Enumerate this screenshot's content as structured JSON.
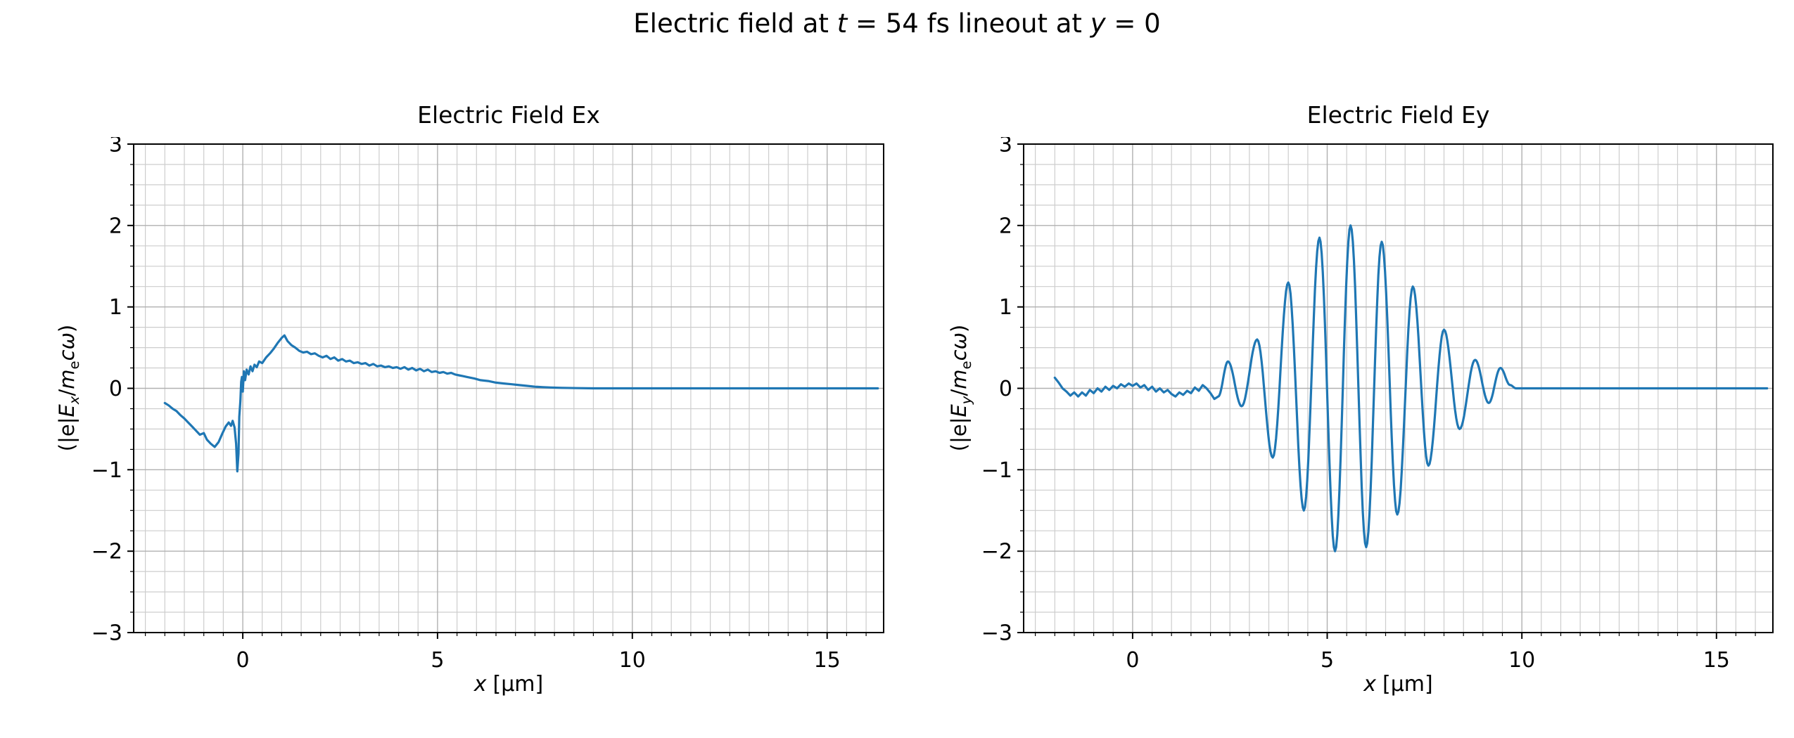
{
  "suptitle": {
    "p1": "Electric field at ",
    "t": "t",
    "p2": " = 54 fs lineout at ",
    "y": "y",
    "p3": " = 0"
  },
  "chart_data": [
    {
      "id": "ex",
      "type": "line",
      "title": "Electric Field Ex",
      "xlabel": {
        "var": "x",
        "unit": "[μm]"
      },
      "ylabel": {
        "pre": "(|e|",
        "E": "E",
        "Esub": "x",
        "slash": "/",
        "m": "m",
        "msub": "e",
        "tail": "cω",
        "close": ")"
      },
      "xlim": [
        -2.8,
        16.45
      ],
      "ylim": [
        -3,
        3
      ],
      "xticks": [
        0,
        5,
        10,
        15
      ],
      "yticks": [
        -3,
        -2,
        -1,
        0,
        1,
        2,
        3
      ],
      "minor_x": 0.5,
      "minor_y": 0.25,
      "grid": true,
      "grid_minor": true,
      "legend": false,
      "line_color": "#1f77b4",
      "points": [
        [
          -2.0,
          -0.18
        ],
        [
          -1.9,
          -0.21
        ],
        [
          -1.8,
          -0.25
        ],
        [
          -1.7,
          -0.28
        ],
        [
          -1.6,
          -0.33
        ],
        [
          -1.5,
          -0.37
        ],
        [
          -1.4,
          -0.42
        ],
        [
          -1.3,
          -0.47
        ],
        [
          -1.2,
          -0.52
        ],
        [
          -1.1,
          -0.57
        ],
        [
          -1.0,
          -0.55
        ],
        [
          -0.92,
          -0.63
        ],
        [
          -0.82,
          -0.68
        ],
        [
          -0.72,
          -0.72
        ],
        [
          -0.62,
          -0.66
        ],
        [
          -0.52,
          -0.55
        ],
        [
          -0.44,
          -0.47
        ],
        [
          -0.36,
          -0.42
        ],
        [
          -0.3,
          -0.46
        ],
        [
          -0.26,
          -0.4
        ],
        [
          -0.21,
          -0.48
        ],
        [
          -0.17,
          -0.68
        ],
        [
          -0.14,
          -1.02
        ],
        [
          -0.11,
          -0.8
        ],
        [
          -0.09,
          -0.35
        ],
        [
          -0.06,
          -0.15
        ],
        [
          -0.04,
          0.08
        ],
        [
          -0.02,
          0.14
        ],
        [
          0.0,
          -0.04
        ],
        [
          0.03,
          0.21
        ],
        [
          0.06,
          0.1
        ],
        [
          0.1,
          0.23
        ],
        [
          0.15,
          0.17
        ],
        [
          0.2,
          0.27
        ],
        [
          0.25,
          0.21
        ],
        [
          0.3,
          0.29
        ],
        [
          0.36,
          0.26
        ],
        [
          0.42,
          0.33
        ],
        [
          0.5,
          0.31
        ],
        [
          0.6,
          0.38
        ],
        [
          0.7,
          0.43
        ],
        [
          0.8,
          0.49
        ],
        [
          0.9,
          0.56
        ],
        [
          1.0,
          0.62
        ],
        [
          1.07,
          0.65
        ],
        [
          1.15,
          0.58
        ],
        [
          1.25,
          0.53
        ],
        [
          1.35,
          0.5
        ],
        [
          1.45,
          0.46
        ],
        [
          1.55,
          0.44
        ],
        [
          1.65,
          0.45
        ],
        [
          1.75,
          0.42
        ],
        [
          1.85,
          0.43
        ],
        [
          1.95,
          0.4
        ],
        [
          2.05,
          0.38
        ],
        [
          2.15,
          0.4
        ],
        [
          2.25,
          0.36
        ],
        [
          2.35,
          0.38
        ],
        [
          2.45,
          0.34
        ],
        [
          2.55,
          0.36
        ],
        [
          2.65,
          0.33
        ],
        [
          2.75,
          0.34
        ],
        [
          2.85,
          0.31
        ],
        [
          2.95,
          0.32
        ],
        [
          3.05,
          0.3
        ],
        [
          3.15,
          0.31
        ],
        [
          3.25,
          0.28
        ],
        [
          3.35,
          0.3
        ],
        [
          3.45,
          0.27
        ],
        [
          3.55,
          0.28
        ],
        [
          3.65,
          0.26
        ],
        [
          3.75,
          0.27
        ],
        [
          3.85,
          0.25
        ],
        [
          3.95,
          0.26
        ],
        [
          4.05,
          0.24
        ],
        [
          4.15,
          0.26
        ],
        [
          4.25,
          0.23
        ],
        [
          4.35,
          0.25
        ],
        [
          4.45,
          0.22
        ],
        [
          4.55,
          0.24
        ],
        [
          4.65,
          0.21
        ],
        [
          4.75,
          0.23
        ],
        [
          4.85,
          0.2
        ],
        [
          4.95,
          0.21
        ],
        [
          5.05,
          0.19
        ],
        [
          5.15,
          0.2
        ],
        [
          5.25,
          0.18
        ],
        [
          5.35,
          0.19
        ],
        [
          5.45,
          0.17
        ],
        [
          5.55,
          0.16
        ],
        [
          5.65,
          0.15
        ],
        [
          5.75,
          0.14
        ],
        [
          5.85,
          0.13
        ],
        [
          5.95,
          0.12
        ],
        [
          6.1,
          0.1
        ],
        [
          6.3,
          0.09
        ],
        [
          6.5,
          0.07
        ],
        [
          6.7,
          0.06
        ],
        [
          6.9,
          0.05
        ],
        [
          7.1,
          0.04
        ],
        [
          7.3,
          0.03
        ],
        [
          7.5,
          0.02
        ],
        [
          7.7,
          0.015
        ],
        [
          7.9,
          0.01
        ],
        [
          8.2,
          0.006
        ],
        [
          8.6,
          0.003
        ],
        [
          9.0,
          0.0
        ],
        [
          16.3,
          0.0
        ]
      ]
    },
    {
      "id": "ey",
      "type": "line",
      "title": "Electric Field Ey",
      "xlabel": {
        "var": "x",
        "unit": "[μm]"
      },
      "ylabel": {
        "pre": "(|e|",
        "E": "E",
        "Esub": "y",
        "slash": "/",
        "m": "m",
        "msub": "e",
        "tail": "cω",
        "close": ")"
      },
      "xlim": [
        -2.8,
        16.45
      ],
      "ylim": [
        -3,
        3
      ],
      "xticks": [
        0,
        5,
        10,
        15
      ],
      "yticks": [
        -3,
        -2,
        -1,
        0,
        1,
        2,
        3
      ],
      "minor_x": 0.5,
      "minor_y": 0.25,
      "grid": true,
      "grid_minor": true,
      "legend": false,
      "line_color": "#1f77b4",
      "pre_points": [
        [
          -2.0,
          0.13
        ],
        [
          -1.9,
          0.07
        ],
        [
          -1.8,
          0.0
        ],
        [
          -1.7,
          -0.04
        ],
        [
          -1.6,
          -0.09
        ],
        [
          -1.5,
          -0.05
        ],
        [
          -1.4,
          -0.1
        ],
        [
          -1.3,
          -0.05
        ],
        [
          -1.2,
          -0.09
        ],
        [
          -1.1,
          -0.02
        ],
        [
          -1.0,
          -0.06
        ],
        [
          -0.9,
          0.0
        ],
        [
          -0.8,
          -0.04
        ],
        [
          -0.7,
          0.02
        ],
        [
          -0.6,
          -0.02
        ],
        [
          -0.5,
          0.03
        ],
        [
          -0.4,
          0.0
        ],
        [
          -0.3,
          0.05
        ],
        [
          -0.2,
          0.02
        ],
        [
          -0.1,
          0.06
        ],
        [
          0.0,
          0.03
        ],
        [
          0.1,
          0.06
        ],
        [
          0.2,
          0.01
        ],
        [
          0.3,
          0.04
        ],
        [
          0.4,
          -0.02
        ],
        [
          0.5,
          0.02
        ],
        [
          0.6,
          -0.04
        ],
        [
          0.7,
          0.0
        ],
        [
          0.8,
          -0.05
        ],
        [
          0.9,
          -0.02
        ],
        [
          1.0,
          -0.07
        ],
        [
          1.1,
          -0.1
        ],
        [
          1.2,
          -0.05
        ],
        [
          1.3,
          -0.08
        ],
        [
          1.4,
          -0.03
        ],
        [
          1.5,
          -0.06
        ],
        [
          1.6,
          0.01
        ],
        [
          1.7,
          -0.03
        ],
        [
          1.8,
          0.04
        ],
        [
          1.9,
          0.0
        ],
        [
          2.0,
          -0.06
        ],
        [
          2.1,
          -0.13
        ],
        [
          2.2,
          -0.1
        ]
      ],
      "extrema": [
        [
          2.45,
          0.33
        ],
        [
          2.8,
          -0.22
        ],
        [
          3.2,
          0.6
        ],
        [
          3.6,
          -0.85
        ],
        [
          4.0,
          1.3
        ],
        [
          4.4,
          -1.5
        ],
        [
          4.8,
          1.85
        ],
        [
          5.2,
          -2.0
        ],
        [
          5.6,
          2.0
        ],
        [
          6.0,
          -1.95
        ],
        [
          6.4,
          1.8
        ],
        [
          6.8,
          -1.55
        ],
        [
          7.2,
          1.25
        ],
        [
          7.6,
          -0.95
        ],
        [
          8.0,
          0.72
        ],
        [
          8.4,
          -0.5
        ],
        [
          8.8,
          0.35
        ],
        [
          9.15,
          -0.18
        ],
        [
          9.45,
          0.25
        ]
      ],
      "post_points": [
        [
          9.7,
          0.04
        ],
        [
          9.85,
          0.0
        ],
        [
          16.3,
          0.0
        ]
      ]
    }
  ]
}
